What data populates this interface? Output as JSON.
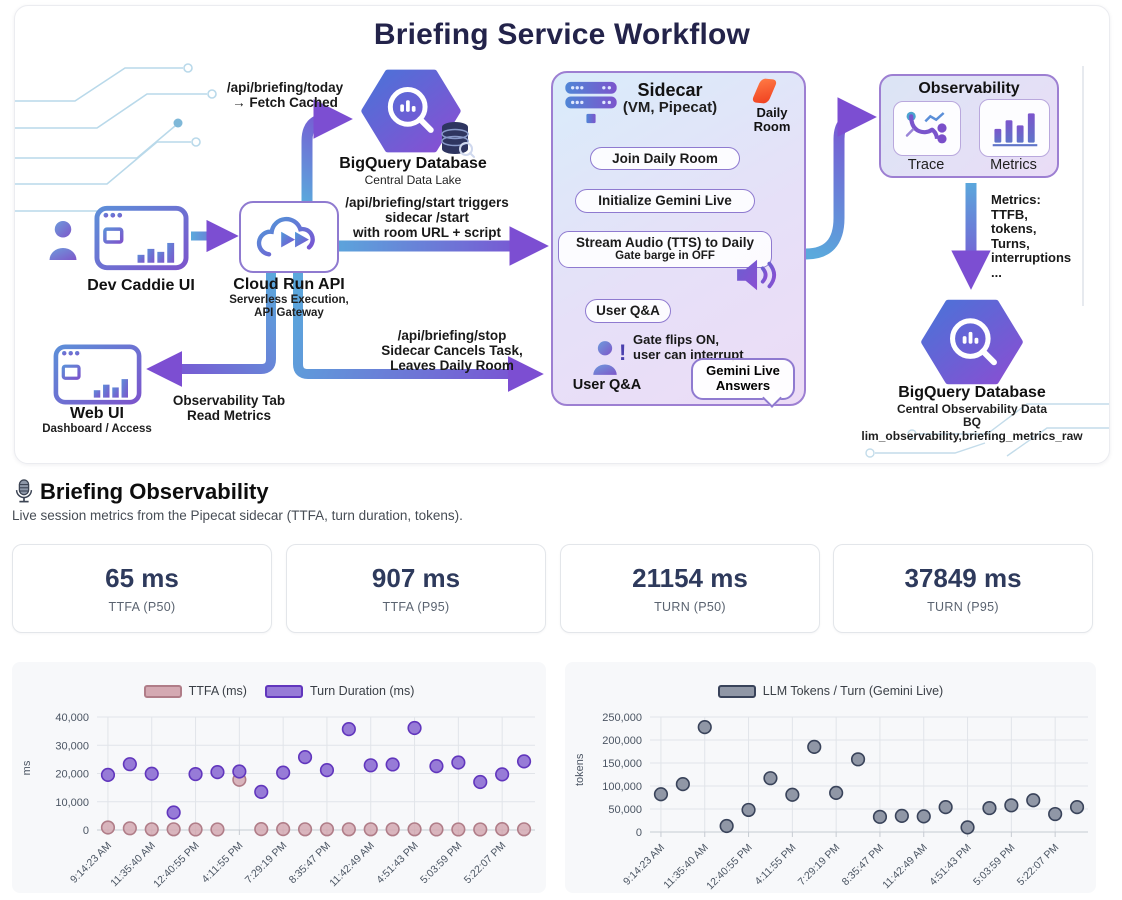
{
  "diagram": {
    "title": "Briefing Service Workflow",
    "nodes": {
      "dev_caddie": {
        "label": "Dev Caddie UI"
      },
      "cloud_run": {
        "label": "Cloud Run API",
        "sub1": "Serverless Execution,",
        "sub2": "API Gateway"
      },
      "bigquery_top": {
        "label": "BigQuery Database",
        "sub": "Central Data Lake"
      },
      "web_ui": {
        "label": "Web UI",
        "sub": "Dashboard / Access"
      },
      "sidecar": {
        "label": "Sidecar",
        "sub": "(VM, Pipecat)",
        "daily_room_1": "Daily",
        "daily_room_2": "Room",
        "steps": [
          "Join Daily Room",
          "Initialize Gemini Live",
          "Stream Audio (TTS) to Daily"
        ],
        "step3_sub": "Gate barge in OFF",
        "user_qa_pill": "User Q&A",
        "gate_note_1": "Gate flips ON,",
        "gate_note_2": "user can interrupt",
        "user_qa_label": "User Q&A",
        "answers_1": "Gemini Live",
        "answers_2": "Answers"
      },
      "observability": {
        "label": "Observability",
        "trace": "Trace",
        "metrics": "Metrics"
      },
      "bigquery_bottom": {
        "label": "BigQuery Database",
        "sub": "Central Observability Data",
        "sub2": "BQ lim_observability,briefing_metrics_raw"
      }
    },
    "edges": {
      "today": [
        "/api/briefing/today",
        "→ Fetch Cached"
      ],
      "start": [
        "/api/briefing/start triggers",
        "sidecar /start",
        "with room URL + script"
      ],
      "stop": [
        "/api/briefing/stop",
        "Sidecar Cancels Task,",
        "Leaves Daily Room"
      ],
      "obs_tab": [
        "Observability Tab",
        "Read Metrics"
      ],
      "metrics_list": [
        "Metrics:",
        "TTFB,",
        "tokens,",
        "Turns,",
        "interruptions",
        "..."
      ]
    }
  },
  "section": {
    "title": "Briefing Observability",
    "subtitle": "Live session metrics from the Pipecat sidecar (TTFA, turn duration, tokens)."
  },
  "metric_cards": [
    {
      "value": "65 ms",
      "label": "TTFA (P50)"
    },
    {
      "value": "907 ms",
      "label": "TTFA (P95)"
    },
    {
      "value": "21154 ms",
      "label": "TURN (P50)"
    },
    {
      "value": "37849 ms",
      "label": "TURN (P95)"
    }
  ],
  "chart_data": [
    {
      "type": "scatter",
      "title": "",
      "xlabel": "",
      "ylabel": "ms",
      "ylim": [
        0,
        40000
      ],
      "yticks": [
        0,
        10000,
        20000,
        30000,
        40000
      ],
      "grid": true,
      "legend_position": "top",
      "categories": [
        "9:14:23 AM",
        "",
        "11:35:40 AM",
        "",
        "12:40:55 PM",
        "",
        "4:11:55 PM",
        "",
        "7:29:19 PM",
        "",
        "8:35:47 PM",
        "",
        "11:42:49 AM",
        "",
        "4:51:43 PM",
        "",
        "5:03:59 PM",
        "",
        "5:22:07 PM",
        ""
      ],
      "series": [
        {
          "name": "TTFA (ms)",
          "fill": "#d4a9b2",
          "stroke": "#b07d88",
          "opacity": 0.85,
          "values": [
            900,
            600,
            250,
            250,
            200,
            200,
            17800,
            300,
            300,
            250,
            250,
            250,
            250,
            250,
            250,
            200,
            200,
            200,
            300,
            250
          ]
        },
        {
          "name": "Turn Duration (ms)",
          "fill": "#977bd7",
          "stroke": "#6136bd",
          "opacity": 1,
          "values": [
            19500,
            23300,
            19900,
            6200,
            19800,
            20500,
            20700,
            13500,
            20300,
            25800,
            21200,
            35700,
            22900,
            23200,
            36100,
            22600,
            23900,
            17000,
            19700,
            24300
          ]
        }
      ]
    },
    {
      "type": "scatter",
      "title": "",
      "xlabel": "",
      "ylabel": "tokens",
      "ylim": [
        0,
        250000
      ],
      "yticks": [
        0,
        50000,
        100000,
        150000,
        200000,
        250000
      ],
      "grid": true,
      "legend_position": "top",
      "categories": [
        "9:14:23 AM",
        "",
        "11:35:40 AM",
        "",
        "12:40:55 PM",
        "",
        "4:11:55 PM",
        "",
        "7:29:19 PM",
        "",
        "8:35:47 PM",
        "",
        "11:42:49 AM",
        "",
        "4:51:43 PM",
        "",
        "5:03:59 PM",
        "",
        "5:22:07 PM",
        ""
      ],
      "series": [
        {
          "name": "LLM Tokens / Turn (Gemini Live)",
          "fill": "#9097a6",
          "stroke": "#39435a",
          "opacity": 1,
          "values": [
            82000,
            104000,
            228000,
            13000,
            48000,
            117000,
            81000,
            185000,
            85000,
            158000,
            33000,
            35000,
            34000,
            54000,
            10000,
            52000,
            58000,
            69000,
            39000,
            54000
          ]
        }
      ]
    }
  ],
  "colors": {
    "title_navy": "#23234a",
    "arrow_blue": "#5aa9dc",
    "arrow_purple": "#7c4ed2",
    "metric_value_navy": "#2e3a5c",
    "ttfa_fill": "#d4a9b2",
    "turn_fill": "#977bd7",
    "tokens_fill": "#9097a6"
  }
}
